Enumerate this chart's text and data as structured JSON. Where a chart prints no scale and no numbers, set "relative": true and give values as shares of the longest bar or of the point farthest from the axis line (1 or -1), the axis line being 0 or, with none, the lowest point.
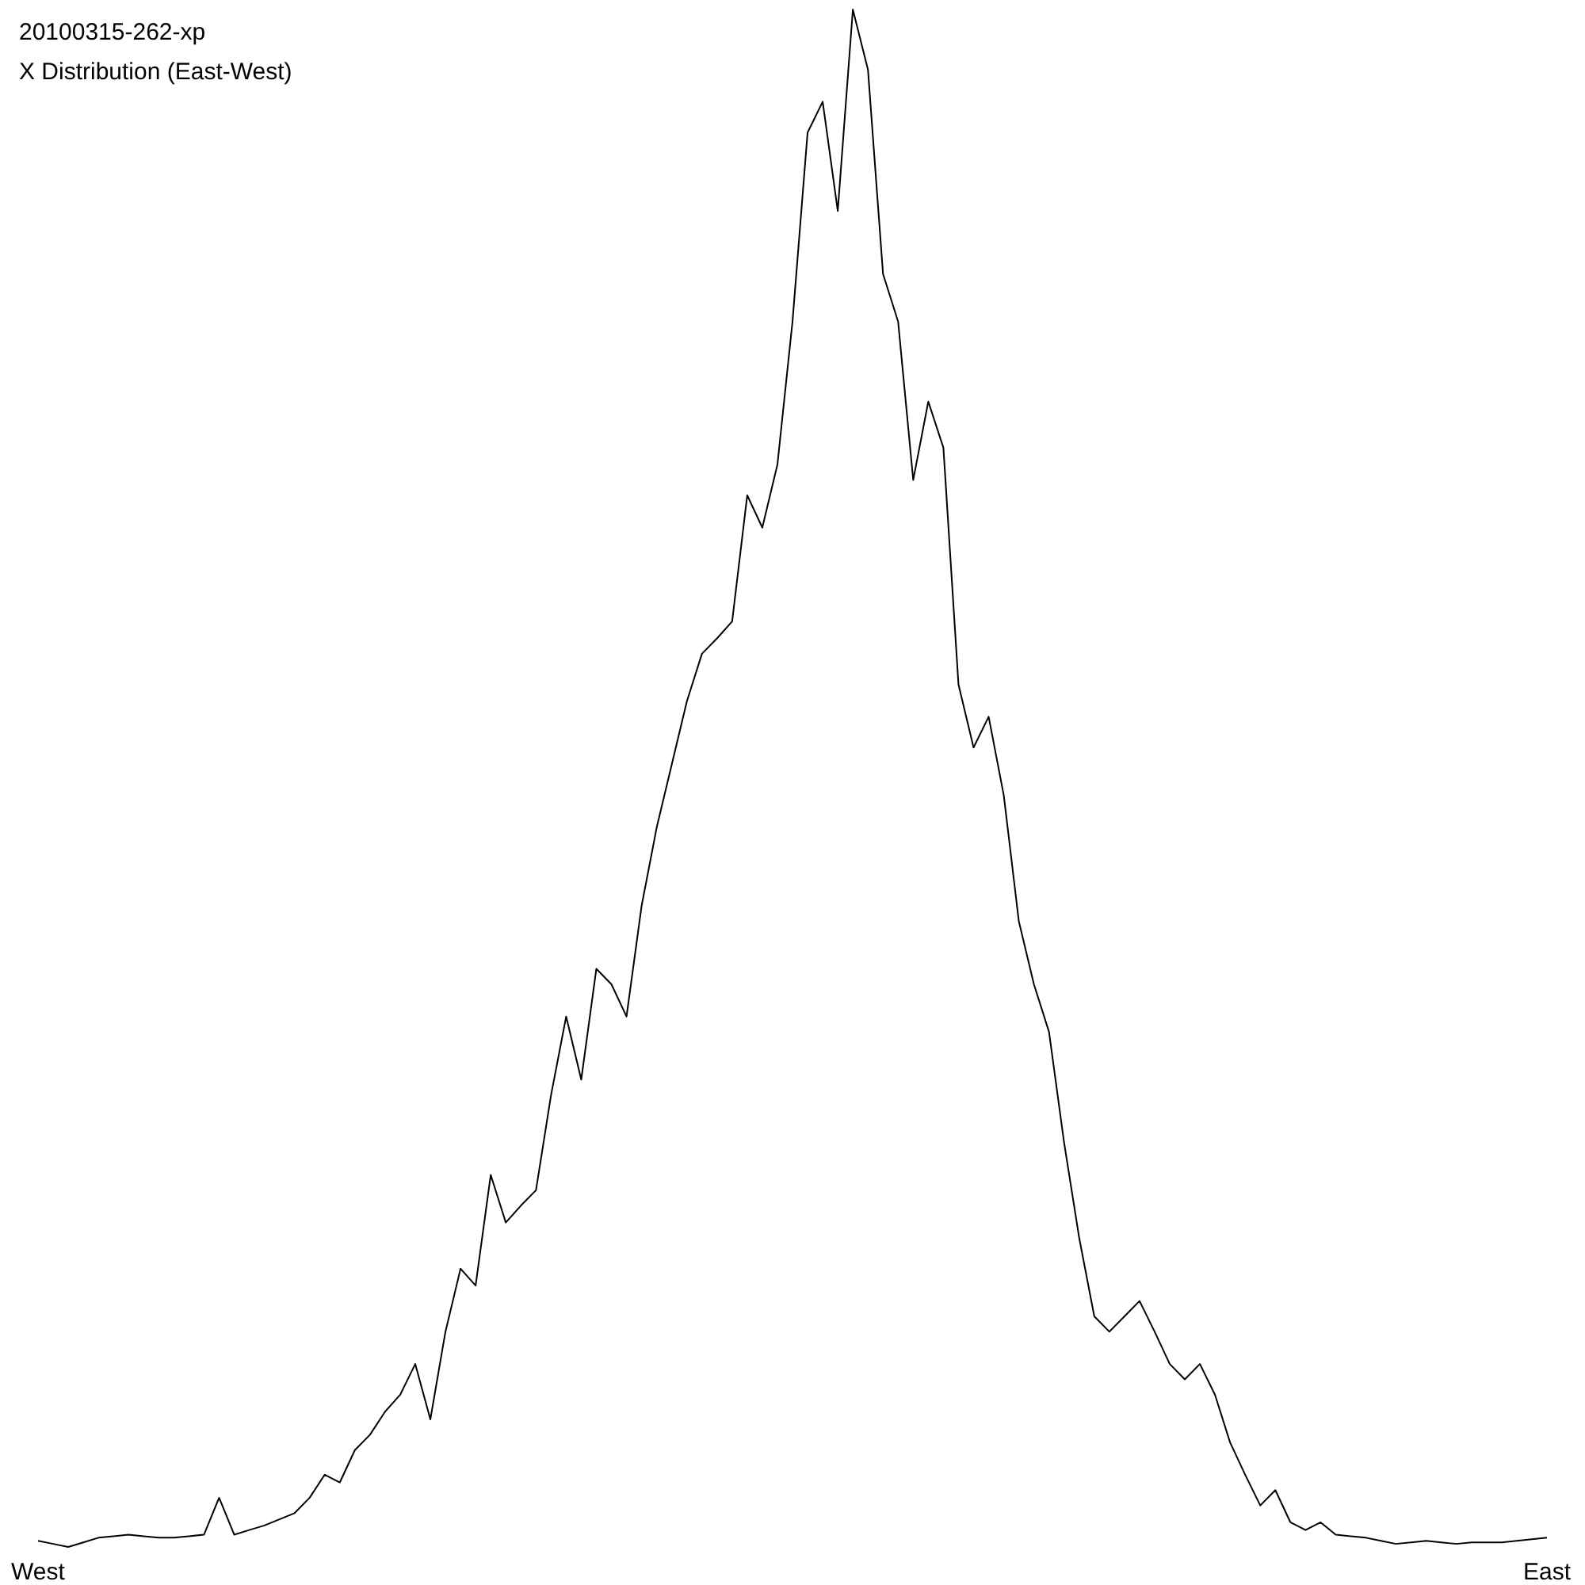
{
  "chart_data": {
    "type": "line",
    "title": "20100315-262-xp",
    "subtitle": "X Distribution (East-West)",
    "relative": true,
    "marker": "none",
    "line_style": "solid",
    "categories": [
      "West",
      null,
      null,
      null,
      null,
      null,
      null,
      null,
      null,
      null,
      null,
      null,
      null,
      null,
      null,
      null,
      null,
      null,
      null,
      null,
      null,
      null,
      null,
      null,
      null,
      null,
      null,
      null,
      null,
      null,
      null,
      null,
      null,
      null,
      null,
      null,
      null,
      null,
      null,
      null,
      null,
      null,
      null,
      null,
      null,
      null,
      null,
      null,
      null,
      null,
      null,
      null,
      null,
      null,
      null,
      null,
      null,
      null,
      null,
      null,
      null,
      null,
      null,
      null,
      null,
      null,
      null,
      null,
      null,
      null,
      null,
      null,
      null,
      null,
      null,
      null,
      null,
      null,
      null,
      null,
      null,
      null,
      null,
      null,
      null,
      null,
      null,
      null,
      null,
      null,
      null,
      null,
      null,
      null,
      null,
      null,
      null,
      null,
      null,
      null,
      "East"
    ],
    "series": [
      {
        "color": "#000000",
        "values": [
          0.004,
          0.002,
          0,
          0.003,
          0.006,
          0.007,
          0.008,
          0.007,
          0.006,
          0.006,
          0.007,
          0.008,
          0.032,
          0.008,
          0.011,
          0.014,
          0.018,
          0.022,
          0.032,
          0.047,
          0.042,
          0.063,
          0.073,
          0.088,
          0.099,
          0.119,
          0.083,
          0.14,
          0.181,
          0.17,
          0.242,
          0.211,
          0.222,
          0.232,
          0.294,
          0.345,
          0.304,
          0.376,
          0.366,
          0.345,
          0.417,
          0.468,
          0.509,
          0.55,
          0.581,
          0.591,
          0.602,
          0.684,
          0.663,
          0.704,
          0.797,
          0.92,
          0.94,
          0.869,
          1,
          0.961,
          0.828,
          0.797,
          0.694,
          0.745,
          0.715,
          0.561,
          0.52,
          0.54,
          0.489,
          0.407,
          0.366,
          0.335,
          0.263,
          0.201,
          0.15,
          0.14,
          0.15,
          0.16,
          0.14,
          0.119,
          0.109,
          0.119,
          0.099,
          0.068,
          0.047,
          0.027,
          0.037,
          0.016,
          0.011,
          0.016,
          0.008,
          0.007,
          0.006,
          0.004,
          0.002,
          0.003,
          0.004,
          0.003,
          0.002,
          0.003,
          0.003,
          0.003,
          0.004,
          0.005,
          0.006
        ]
      }
    ]
  }
}
